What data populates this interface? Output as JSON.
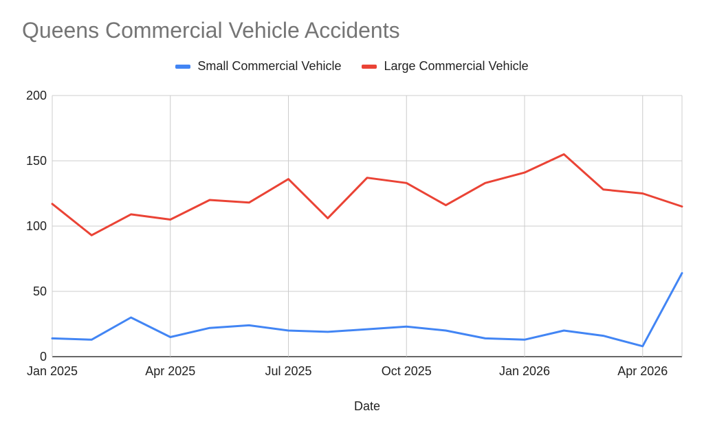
{
  "chart_data": {
    "type": "line",
    "title": "Queens Commercial Vehicle Accidents",
    "xlabel": "Date",
    "ylabel": "",
    "ylim": [
      0,
      200
    ],
    "yticks": [
      0,
      50,
      100,
      150,
      200
    ],
    "xticks": [
      {
        "label": "Jan 2025",
        "x": "2025-01"
      },
      {
        "label": "Apr 2025",
        "x": "2025-04"
      },
      {
        "label": "Jul 2025",
        "x": "2025-07"
      },
      {
        "label": "Oct 2025",
        "x": "2025-10"
      },
      {
        "label": "Jan 2026",
        "x": "2026-01"
      },
      {
        "label": "Apr 2026",
        "x": "2026-04"
      }
    ],
    "x": [
      "2025-01",
      "2025-02",
      "2025-03",
      "2025-04",
      "2025-05",
      "2025-06",
      "2025-07",
      "2025-08",
      "2025-09",
      "2025-10",
      "2025-11",
      "2025-12",
      "2026-01",
      "2026-02",
      "2026-03",
      "2026-04",
      "2026-05"
    ],
    "series": [
      {
        "name": "Small Commercial Vehicle",
        "color": "#4285f4",
        "values": [
          14,
          13,
          30,
          15,
          22,
          24,
          20,
          19,
          21,
          23,
          20,
          14,
          13,
          20,
          16,
          8,
          64
        ]
      },
      {
        "name": "Large Commercial Vehicle",
        "color": "#ea4335",
        "values": [
          117,
          93,
          109,
          105,
          120,
          118,
          136,
          106,
          137,
          133,
          116,
          133,
          141,
          155,
          128,
          125,
          115
        ]
      }
    ],
    "grid": true,
    "legend": "top-center"
  }
}
